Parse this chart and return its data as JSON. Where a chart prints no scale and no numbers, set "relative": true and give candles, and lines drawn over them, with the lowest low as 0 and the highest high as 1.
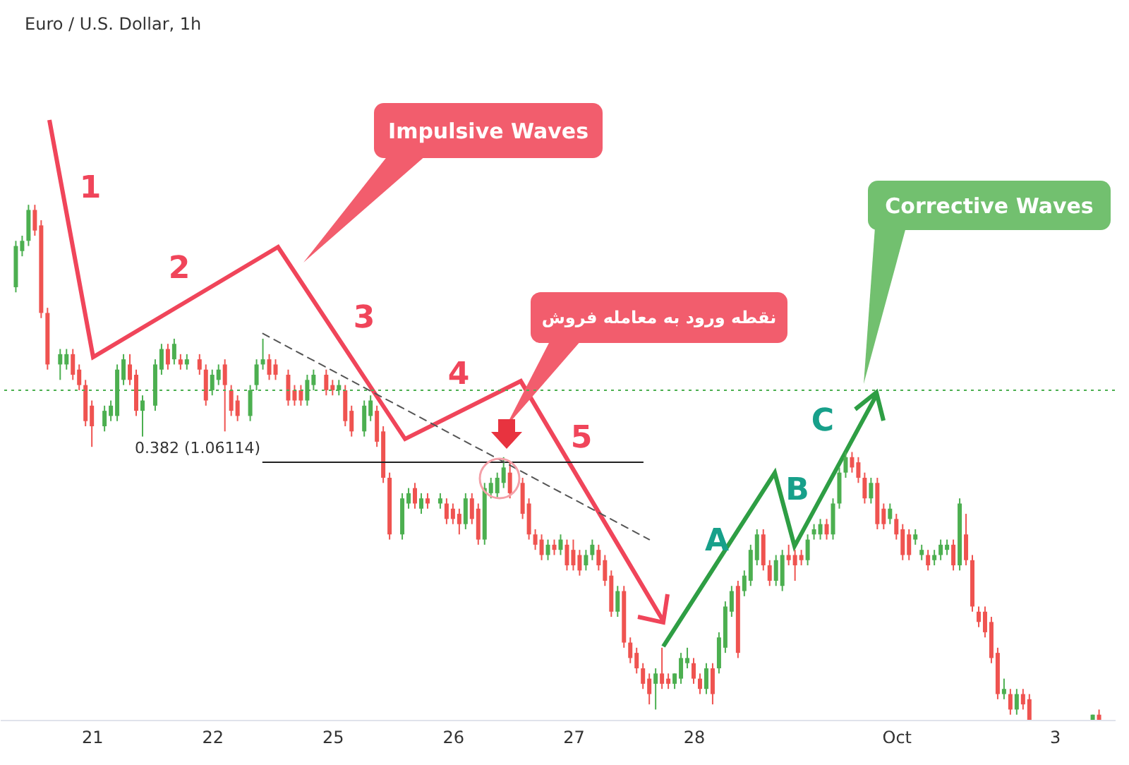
{
  "chart_data": {
    "type": "candlestick",
    "title": "Euro / U.S. Dollar, 1h",
    "relative": true,
    "categories": [
      null,
      null,
      null,
      null,
      null,
      null,
      null,
      null,
      null,
      null,
      null,
      null,
      null,
      null,
      "21",
      null,
      null,
      null,
      null,
      null,
      null,
      null,
      null,
      null,
      null,
      null,
      null,
      null,
      null,
      null,
      null,
      null,
      null,
      "22",
      null,
      null,
      null,
      null,
      null,
      null,
      null,
      null,
      null,
      null,
      null,
      null,
      null,
      null,
      null,
      null,
      null,
      null,
      "25",
      null,
      null,
      null,
      null,
      null,
      null,
      null,
      null,
      null,
      null,
      null,
      null,
      null,
      null,
      null,
      null,
      null,
      null,
      "26",
      null,
      null,
      null,
      null,
      null,
      null,
      null,
      null,
      null,
      null,
      null,
      null,
      null,
      null,
      null,
      null,
      null,
      null,
      "27",
      null,
      null,
      null,
      null,
      null,
      null,
      null,
      null,
      null,
      null,
      null,
      null,
      null,
      null,
      null,
      null,
      null,
      null,
      "28",
      null,
      null,
      null,
      null,
      null,
      null,
      null,
      null,
      null,
      null,
      null,
      null,
      null,
      null,
      null,
      null,
      null,
      null,
      null,
      null,
      null,
      null,
      null,
      null,
      null,
      null,
      null,
      null,
      null,
      null,
      null,
      "Oct",
      null,
      null,
      null,
      null,
      null,
      null,
      null,
      null,
      null,
      null,
      null,
      null,
      null,
      null,
      null,
      null,
      null,
      null,
      null,
      null,
      null,
      null,
      null,
      null,
      "3",
      null,
      null,
      null,
      null,
      null,
      null,
      null,
      null,
      null
    ],
    "ohlc": [
      null,
      null,
      [
        0.84,
        0.93,
        0.83,
        0.92
      ],
      [
        0.91,
        0.94,
        0.9,
        0.93
      ],
      [
        0.93,
        1.0,
        0.92,
        0.99
      ],
      [
        0.99,
        1.0,
        0.94,
        0.95
      ],
      [
        0.96,
        0.97,
        0.78,
        0.79
      ],
      [
        0.79,
        0.8,
        0.68,
        0.69
      ],
      null,
      [
        0.69,
        0.72,
        0.66,
        0.71
      ],
      [
        0.69,
        0.72,
        0.68,
        0.71
      ],
      [
        0.71,
        0.72,
        0.66,
        0.67
      ],
      [
        0.68,
        0.69,
        0.64,
        0.65
      ],
      [
        0.65,
        0.66,
        0.57,
        0.58
      ],
      [
        0.61,
        0.62,
        0.53,
        0.57
      ],
      null,
      [
        0.57,
        0.61,
        0.56,
        0.6
      ],
      [
        0.59,
        0.62,
        0.58,
        0.61
      ],
      [
        0.59,
        0.69,
        0.58,
        0.68
      ],
      [
        0.66,
        0.71,
        0.65,
        0.7
      ],
      [
        0.69,
        0.71,
        0.65,
        0.66
      ],
      [
        0.67,
        0.68,
        0.59,
        0.6
      ],
      [
        0.6,
        0.63,
        0.55,
        0.62
      ],
      null,
      [
        0.61,
        0.7,
        0.6,
        0.69
      ],
      [
        0.68,
        0.73,
        0.67,
        0.72
      ],
      [
        0.72,
        0.73,
        0.68,
        0.69
      ],
      [
        0.7,
        0.74,
        0.69,
        0.73
      ],
      [
        0.7,
        0.71,
        0.68,
        0.69
      ],
      [
        0.69,
        0.71,
        0.68,
        0.7
      ],
      null,
      [
        0.7,
        0.71,
        0.67,
        0.68
      ],
      [
        0.68,
        0.69,
        0.61,
        0.62
      ],
      [
        0.64,
        0.68,
        0.63,
        0.67
      ],
      [
        0.66,
        0.69,
        0.65,
        0.68
      ],
      [
        0.69,
        0.7,
        0.56,
        0.65
      ],
      [
        0.64,
        0.65,
        0.59,
        0.6
      ],
      [
        0.62,
        0.63,
        0.58,
        0.59
      ],
      null,
      [
        0.59,
        0.65,
        0.58,
        0.64
      ],
      [
        0.65,
        0.7,
        0.64,
        0.69
      ],
      [
        0.69,
        0.74,
        0.68,
        0.7
      ],
      [
        0.7,
        0.71,
        0.66,
        0.67
      ],
      [
        0.69,
        0.7,
        0.66,
        0.67
      ],
      null,
      [
        0.67,
        0.68,
        0.61,
        0.62
      ],
      [
        0.64,
        0.65,
        0.61,
        0.62
      ],
      [
        0.64,
        0.65,
        0.61,
        0.62
      ],
      [
        0.62,
        0.67,
        0.61,
        0.66
      ],
      [
        0.65,
        0.68,
        0.64,
        0.67
      ],
      null,
      [
        0.67,
        0.68,
        0.63,
        0.64
      ],
      [
        0.65,
        0.66,
        0.63,
        0.64
      ],
      [
        0.64,
        0.66,
        0.63,
        0.65
      ],
      [
        0.64,
        0.65,
        0.57,
        0.58
      ],
      [
        0.6,
        0.61,
        0.55,
        0.56
      ],
      null,
      [
        0.56,
        0.62,
        0.55,
        0.61
      ],
      [
        0.59,
        0.63,
        0.58,
        0.62
      ],
      [
        0.6,
        0.61,
        0.53,
        0.54
      ],
      [
        0.56,
        0.57,
        0.46,
        0.47
      ],
      [
        0.47,
        0.48,
        0.35,
        0.36
      ],
      null,
      [
        0.36,
        0.44,
        0.35,
        0.43
      ],
      [
        0.42,
        0.45,
        0.41,
        0.44
      ],
      [
        0.45,
        0.46,
        0.41,
        0.42
      ],
      [
        0.41,
        0.44,
        0.4,
        0.43
      ],
      [
        0.43,
        0.44,
        0.41,
        0.42
      ],
      null,
      [
        0.42,
        0.44,
        0.41,
        0.43
      ],
      [
        0.42,
        0.43,
        0.38,
        0.39
      ],
      [
        0.41,
        0.42,
        0.38,
        0.39
      ],
      [
        0.4,
        0.41,
        0.36,
        0.38
      ],
      [
        0.38,
        0.44,
        0.37,
        0.43
      ],
      [
        0.43,
        0.44,
        0.38,
        0.39
      ],
      [
        0.41,
        0.42,
        0.34,
        0.35
      ],
      [
        0.35,
        0.46,
        0.34,
        0.45
      ],
      [
        0.44,
        0.47,
        0.43,
        0.46
      ],
      [
        0.44,
        0.48,
        0.43,
        0.47
      ],
      [
        0.46,
        0.51,
        0.45,
        0.49
      ],
      [
        0.48,
        0.5,
        0.43,
        0.44
      ],
      null,
      [
        0.46,
        0.47,
        0.39,
        0.4
      ],
      [
        0.42,
        0.43,
        0.35,
        0.36
      ],
      [
        0.36,
        0.37,
        0.33,
        0.34
      ],
      [
        0.35,
        0.36,
        0.31,
        0.32
      ],
      [
        0.32,
        0.35,
        0.31,
        0.34
      ],
      [
        0.34,
        0.35,
        0.32,
        0.33
      ],
      [
        0.33,
        0.36,
        0.32,
        0.35
      ],
      [
        0.34,
        0.35,
        0.29,
        0.3
      ],
      [
        0.33,
        0.35,
        0.29,
        0.3
      ],
      [
        0.32,
        0.33,
        0.28,
        0.29
      ],
      [
        0.3,
        0.33,
        0.29,
        0.32
      ],
      [
        0.32,
        0.35,
        0.31,
        0.34
      ],
      [
        0.33,
        0.34,
        0.29,
        0.3
      ],
      [
        0.31,
        0.32,
        0.26,
        0.27
      ],
      [
        0.28,
        0.29,
        0.2,
        0.21
      ],
      [
        0.21,
        0.26,
        0.2,
        0.25
      ],
      [
        0.25,
        0.26,
        0.14,
        0.15
      ],
      [
        0.15,
        0.16,
        0.11,
        0.12
      ],
      [
        0.13,
        0.14,
        0.09,
        0.1
      ],
      [
        0.1,
        0.11,
        0.06,
        0.07
      ],
      [
        0.08,
        0.09,
        0.03,
        0.05
      ],
      [
        0.07,
        0.1,
        0.02,
        0.09
      ],
      [
        0.09,
        0.14,
        0.06,
        0.07
      ],
      [
        0.08,
        0.09,
        0.06,
        0.07
      ],
      [
        0.07,
        0.09,
        0.06,
        0.09
      ],
      [
        0.08,
        0.13,
        0.07,
        0.12
      ],
      [
        0.11,
        0.14,
        0.1,
        0.12
      ],
      [
        0.11,
        0.12,
        0.07,
        0.08
      ],
      [
        0.08,
        0.09,
        0.05,
        0.06
      ],
      [
        0.06,
        0.11,
        0.05,
        0.1
      ],
      [
        0.1,
        0.11,
        0.03,
        0.05
      ],
      [
        0.1,
        0.17,
        0.09,
        0.16
      ],
      [
        0.14,
        0.23,
        0.13,
        0.22
      ],
      [
        0.21,
        0.26,
        0.2,
        0.25
      ],
      [
        0.26,
        0.27,
        0.12,
        0.13
      ],
      [
        0.25,
        0.29,
        0.24,
        0.28
      ],
      [
        0.27,
        0.34,
        0.26,
        0.33
      ],
      [
        0.31,
        0.37,
        0.3,
        0.36
      ],
      [
        0.36,
        0.37,
        0.29,
        0.3
      ],
      [
        0.3,
        0.31,
        0.26,
        0.27
      ],
      [
        0.27,
        0.32,
        0.26,
        0.31
      ],
      [
        0.26,
        0.33,
        0.25,
        0.32
      ],
      [
        0.32,
        0.34,
        0.3,
        0.31
      ],
      [
        0.32,
        0.33,
        0.27,
        0.3
      ],
      [
        0.32,
        0.33,
        0.3,
        0.31
      ],
      [
        0.31,
        0.36,
        0.3,
        0.35
      ],
      [
        0.36,
        0.38,
        0.35,
        0.37
      ],
      [
        0.36,
        0.39,
        0.35,
        0.38
      ],
      [
        0.38,
        0.39,
        0.35,
        0.36
      ],
      [
        0.36,
        0.43,
        0.35,
        0.42
      ],
      [
        0.42,
        0.49,
        0.41,
        0.48
      ],
      [
        0.48,
        0.52,
        0.47,
        0.51
      ],
      [
        0.51,
        0.52,
        0.48,
        0.49
      ],
      [
        0.5,
        0.51,
        0.46,
        0.47
      ],
      [
        0.47,
        0.48,
        0.42,
        0.43
      ],
      [
        0.43,
        0.47,
        0.42,
        0.46
      ],
      [
        0.46,
        0.47,
        0.37,
        0.38
      ],
      [
        0.41,
        0.42,
        0.37,
        0.38
      ],
      [
        0.39,
        0.42,
        0.38,
        0.41
      ],
      [
        0.39,
        0.4,
        0.35,
        0.36
      ],
      [
        0.37,
        0.38,
        0.31,
        0.32
      ],
      [
        0.36,
        0.37,
        0.31,
        0.32
      ],
      [
        0.35,
        0.37,
        0.34,
        0.36
      ],
      [
        0.32,
        0.34,
        0.31,
        0.33
      ],
      [
        0.32,
        0.33,
        0.29,
        0.3
      ],
      [
        0.31,
        0.33,
        0.3,
        0.32
      ],
      [
        0.32,
        0.35,
        0.31,
        0.34
      ],
      [
        0.33,
        0.35,
        0.32,
        0.34
      ],
      [
        0.34,
        0.35,
        0.29,
        0.3
      ],
      [
        0.3,
        0.43,
        0.29,
        0.42
      ],
      [
        0.36,
        0.4,
        0.3,
        0.31
      ],
      [
        0.31,
        0.32,
        0.21,
        0.22
      ],
      [
        0.21,
        0.22,
        0.18,
        0.19
      ],
      [
        0.21,
        0.22,
        0.16,
        0.17
      ],
      [
        0.19,
        0.2,
        0.11,
        0.12
      ],
      [
        0.13,
        0.14,
        0.04,
        0.05
      ],
      [
        0.05,
        0.08,
        0.04,
        0.06
      ],
      [
        0.05,
        0.06,
        0.01,
        0.02
      ],
      [
        0.02,
        0.06,
        0.01,
        0.05
      ],
      [
        0.05,
        0.06,
        0.02,
        0.03
      ],
      [
        0.04,
        0.05,
        0,
        0
      ],
      null,
      null,
      null,
      null,
      null,
      null,
      null,
      null,
      null,
      [
        0,
        0.01,
        0,
        0.01
      ],
      [
        0.01,
        0.02,
        0,
        0
      ],
      null,
      null
    ],
    "colors": [
      null,
      null,
      "#4caf50",
      "#4caf50",
      "#4caf50",
      "#ef5350",
      "#ef5350",
      "#ef5350",
      null,
      "#4caf50",
      "#4caf50",
      "#ef5350",
      "#ef5350",
      "#ef5350",
      "#ef5350",
      null,
      "#4caf50",
      "#4caf50",
      "#4caf50",
      "#4caf50",
      "#ef5350",
      "#ef5350",
      "#4caf50",
      null,
      "#4caf50",
      "#4caf50",
      "#ef5350",
      "#4caf50",
      "#ef5350",
      "#4caf50",
      null,
      "#ef5350",
      "#ef5350",
      "#4caf50",
      "#4caf50",
      "#ef5350",
      "#ef5350",
      "#ef5350",
      null,
      "#4caf50",
      "#4caf50",
      "#4caf50",
      "#ef5350",
      "#ef5350",
      null,
      "#ef5350",
      "#ef5350",
      "#ef5350",
      "#4caf50",
      "#4caf50",
      null,
      "#ef5350",
      "#ef5350",
      "#4caf50",
      "#ef5350",
      "#ef5350",
      null,
      "#4caf50",
      "#4caf50",
      "#ef5350",
      "#ef5350",
      "#ef5350",
      null,
      "#4caf50",
      "#4caf50",
      "#ef5350",
      "#4caf50",
      "#ef5350",
      null,
      "#4caf50",
      "#ef5350",
      "#ef5350",
      "#ef5350",
      "#4caf50",
      "#ef5350",
      "#ef5350",
      "#4caf50",
      "#4caf50",
      "#4caf50",
      "#4caf50",
      "#ef5350",
      null,
      "#ef5350",
      "#ef5350",
      "#ef5350",
      "#ef5350",
      "#4caf50",
      "#ef5350",
      "#4caf50",
      "#ef5350",
      "#ef5350",
      "#ef5350",
      "#4caf50",
      "#4caf50",
      "#ef5350",
      "#ef5350",
      "#ef5350",
      "#4caf50",
      "#ef5350",
      "#ef5350",
      "#ef5350",
      "#ef5350",
      "#ef5350",
      "#4caf50",
      "#ef5350",
      "#ef5350",
      "#4caf50",
      "#4caf50",
      "#4caf50",
      "#ef5350",
      "#ef5350",
      "#4caf50",
      "#ef5350",
      "#4caf50",
      "#4caf50",
      "#4caf50",
      "#ef5350",
      "#4caf50",
      "#4caf50",
      "#4caf50",
      "#ef5350",
      "#ef5350",
      "#4caf50",
      "#4caf50",
      "#ef5350",
      "#ef5350",
      "#ef5350",
      "#4caf50",
      "#4caf50",
      "#4caf50",
      "#ef5350",
      "#4caf50",
      "#4caf50",
      "#4caf50",
      "#ef5350",
      "#ef5350",
      "#ef5350",
      "#4caf50",
      "#ef5350",
      "#ef5350",
      "#4caf50",
      "#ef5350",
      "#ef5350",
      "#ef5350",
      "#4caf50",
      "#4caf50",
      "#ef5350",
      "#4caf50",
      "#4caf50",
      "#4caf50",
      "#ef5350",
      "#4caf50",
      "#ef5350",
      "#ef5350",
      "#ef5350",
      "#ef5350",
      "#ef5350",
      "#ef5350",
      "#4caf50",
      "#ef5350",
      "#4caf50",
      "#ef5350",
      "#ef5350",
      null,
      null,
      null,
      null,
      null,
      null,
      null,
      null,
      null,
      "#4caf50",
      "#ef5350",
      null,
      null
    ],
    "series": [
      {
        "type": "line",
        "color": "#222222",
        "values": [
          null,
          null,
          null,
          null,
          null,
          null,
          null,
          null,
          null,
          null,
          null,
          null,
          null,
          null,
          null,
          null,
          null,
          null,
          null,
          null,
          null,
          null,
          null,
          null,
          null,
          null,
          null,
          null,
          null,
          null,
          null,
          null,
          null,
          null,
          null,
          null,
          null,
          null,
          null,
          null,
          null,
          0.5,
          null,
          null,
          null,
          null,
          null,
          null,
          null,
          null,
          null,
          null,
          null,
          null,
          null,
          null,
          null,
          null,
          null,
          null,
          null,
          null,
          null,
          null,
          null,
          null,
          null,
          null,
          null,
          null,
          null,
          null,
          null,
          null,
          null,
          null,
          null,
          null,
          null,
          null,
          null,
          null,
          null,
          null,
          null,
          null,
          null,
          null,
          null,
          null,
          null,
          null,
          null,
          null,
          null,
          null,
          null,
          null,
          null,
          null,
          null,
          0.5,
          null,
          null,
          null,
          null,
          null,
          null,
          null,
          null,
          null,
          null,
          null,
          null,
          null,
          null,
          null,
          null,
          null,
          null,
          null,
          null,
          null,
          null,
          null,
          null,
          null,
          null,
          null,
          null,
          null,
          null,
          null,
          null,
          null,
          null,
          null,
          null,
          null,
          null,
          null,
          null,
          null,
          null,
          null,
          null,
          null,
          null,
          null,
          null,
          null,
          null,
          null,
          null,
          null,
          null,
          null,
          null,
          null,
          null,
          null,
          null,
          null,
          null,
          null,
          null,
          null,
          null,
          null,
          null,
          null,
          null,
          null,
          null,
          null,
          null
        ]
      },
      {
        "type": "line",
        "color": "#555555",
        "line_style": "dashed",
        "values": [
          null,
          null,
          null,
          null,
          null,
          null,
          null,
          null,
          null,
          null,
          null,
          null,
          null,
          null,
          null,
          null,
          null,
          null,
          null,
          null,
          null,
          null,
          null,
          null,
          null,
          null,
          null,
          null,
          null,
          null,
          null,
          null,
          null,
          null,
          null,
          null,
          null,
          null,
          null,
          null,
          null,
          0.75,
          null,
          null,
          null,
          null,
          null,
          null,
          null,
          null,
          null,
          null,
          null,
          null,
          null,
          null,
          null,
          null,
          null,
          null,
          null,
          null,
          null,
          null,
          null,
          null,
          null,
          null,
          null,
          null,
          null,
          null,
          null,
          null,
          null,
          null,
          null,
          null,
          null,
          null,
          null,
          null,
          null,
          null,
          null,
          null,
          null,
          null,
          null,
          null,
          null,
          null,
          null,
          null,
          null,
          null,
          null,
          null,
          null,
          null,
          null,
          null,
          0.35,
          null,
          null,
          null,
          null,
          null,
          null,
          null,
          null,
          null,
          null,
          null,
          null,
          null,
          null,
          null,
          null,
          null,
          null,
          null,
          null,
          null,
          null,
          null,
          null,
          null,
          null,
          null,
          null,
          null,
          null,
          null,
          null,
          null,
          null,
          null,
          null,
          null,
          null,
          null,
          null,
          null,
          null,
          null,
          null,
          null,
          null,
          null,
          null,
          null,
          null,
          null,
          null,
          null,
          null,
          null,
          null,
          null,
          null,
          null,
          null,
          null,
          null,
          null,
          null,
          null,
          null,
          null,
          null,
          null,
          null,
          null,
          null,
          null
        ]
      }
    ],
    "ref_lines": [
      {
        "axis": "y",
        "value": 0.64,
        "color": "#4caf50",
        "line_style": "dotted"
      }
    ],
    "annotations": [
      "1",
      "2",
      "3",
      "4",
      "5",
      "A",
      "B",
      "C",
      "Impulsive Waves",
      "نقطه ورود به معامله فروش",
      "Corrective Waves",
      "0.382 (1.06114)"
    ]
  }
}
